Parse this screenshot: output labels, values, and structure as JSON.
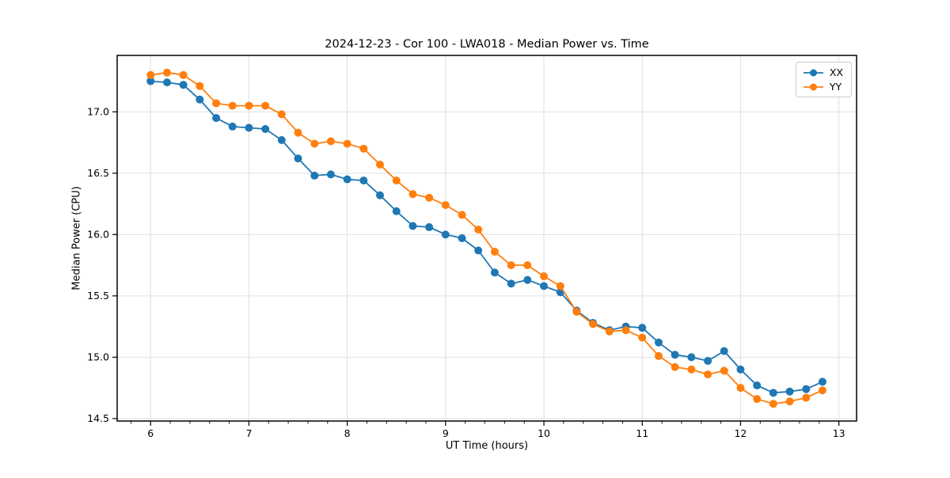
{
  "chart_data": {
    "type": "line",
    "title": "2024-12-23 - Cor 100 - LWA018 - Median Power vs. Time",
    "xlabel": "UT Time (hours)",
    "ylabel": "Median Power (CPU)",
    "xlim": [
      5.66,
      13.18
    ],
    "ylim": [
      14.48,
      17.46
    ],
    "grid": true,
    "legend_position": "upper right",
    "x_tick_labels": [
      "6",
      "7",
      "8",
      "9",
      "10",
      "11",
      "12",
      "13"
    ],
    "x_tick_values": [
      6,
      7,
      8,
      9,
      10,
      11,
      12,
      13
    ],
    "x_minor_tick_step": 0.2,
    "y_tick_labels": [
      "14.5",
      "15.0",
      "15.5",
      "16.0",
      "16.5",
      "17.0"
    ],
    "y_tick_values": [
      14.5,
      15.0,
      15.5,
      16.0,
      16.5,
      17.0
    ],
    "x": [
      6.0,
      6.167,
      6.333,
      6.5,
      6.667,
      6.833,
      7.0,
      7.167,
      7.333,
      7.5,
      7.667,
      7.833,
      8.0,
      8.167,
      8.333,
      8.5,
      8.667,
      8.833,
      9.0,
      9.167,
      9.333,
      9.5,
      9.667,
      9.833,
      10.0,
      10.167,
      10.333,
      10.5,
      10.667,
      10.833,
      11.0,
      11.167,
      11.333,
      11.5,
      11.667,
      11.833,
      12.0,
      12.167,
      12.333,
      12.5,
      12.667,
      12.833
    ],
    "series": [
      {
        "name": "XX",
        "color": "#1f77b4",
        "values": [
          17.25,
          17.24,
          17.22,
          17.1,
          16.95,
          16.88,
          16.87,
          16.86,
          16.77,
          16.62,
          16.48,
          16.49,
          16.45,
          16.44,
          16.32,
          16.19,
          16.07,
          16.06,
          16.0,
          15.97,
          15.87,
          15.69,
          15.6,
          15.63,
          15.58,
          15.53,
          15.38,
          15.28,
          15.22,
          15.25,
          15.24,
          15.12,
          15.02,
          15.0,
          14.97,
          15.05,
          14.9,
          14.77,
          14.71,
          14.72,
          14.74,
          14.8
        ]
      },
      {
        "name": "YY",
        "color": "#ff7f0e",
        "values": [
          17.3,
          17.32,
          17.3,
          17.21,
          17.07,
          17.05,
          17.05,
          17.05,
          16.98,
          16.83,
          16.74,
          16.76,
          16.74,
          16.7,
          16.57,
          16.44,
          16.33,
          16.3,
          16.24,
          16.16,
          16.04,
          15.86,
          15.75,
          15.75,
          15.66,
          15.58,
          15.37,
          15.27,
          15.21,
          15.22,
          15.16,
          15.01,
          14.92,
          14.9,
          14.86,
          14.89,
          14.75,
          14.66,
          14.62,
          14.64,
          14.67,
          14.73
        ]
      }
    ],
    "style": {
      "grid_color": "#e0e0e0",
      "spine_color": "#000000",
      "tick_color": "#000000",
      "background": "#ffffff",
      "marker_radius": 5,
      "line_width": 1.8
    }
  }
}
